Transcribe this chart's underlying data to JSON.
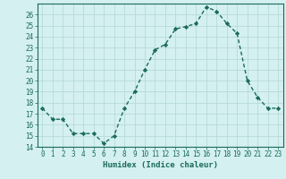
{
  "x": [
    0,
    1,
    2,
    3,
    4,
    5,
    6,
    7,
    8,
    9,
    10,
    11,
    12,
    13,
    14,
    15,
    16,
    17,
    18,
    19,
    20,
    21,
    22,
    23
  ],
  "y": [
    17.5,
    16.5,
    16.5,
    15.2,
    15.2,
    15.2,
    14.3,
    15.0,
    17.5,
    19.0,
    21.0,
    22.8,
    23.3,
    24.7,
    24.9,
    25.2,
    26.7,
    26.3,
    25.2,
    24.3,
    20.0,
    18.5,
    17.5,
    17.5
  ],
  "line_color": "#1a6b5a",
  "marker": "D",
  "marker_size": 2.2,
  "bg_color": "#d4f0f0",
  "grid_color": "#b8dada",
  "xlabel": "Humidex (Indice chaleur)",
  "xlim": [
    -0.5,
    23.5
  ],
  "ylim": [
    14,
    27
  ],
  "yticks": [
    14,
    15,
    16,
    17,
    18,
    19,
    20,
    21,
    22,
    23,
    24,
    25,
    26
  ],
  "xticks": [
    0,
    1,
    2,
    3,
    4,
    5,
    6,
    7,
    8,
    9,
    10,
    11,
    12,
    13,
    14,
    15,
    16,
    17,
    18,
    19,
    20,
    21,
    22,
    23
  ],
  "tick_label_fontsize": 5.5,
  "xlabel_fontsize": 6.5,
  "line_width": 1.0
}
